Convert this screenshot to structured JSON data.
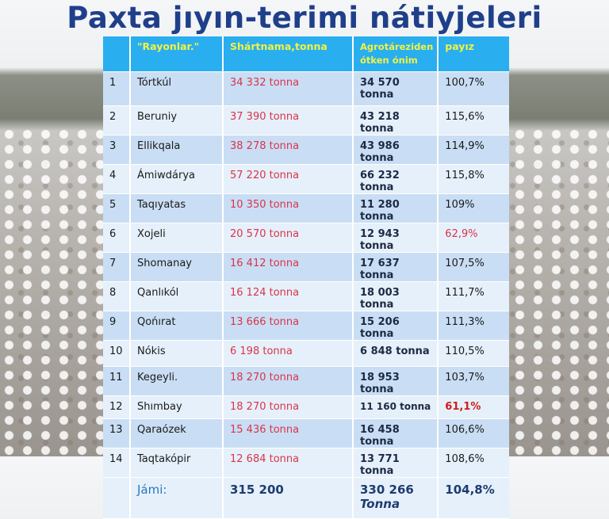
{
  "title": "Paxta jıyın-terimi nátiyjeleri",
  "table": {
    "headers": [
      "",
      "\"Rayonlar.\"",
      "Shártnama,tonna",
      "Agrotáreziden ótken ónim",
      "payız"
    ],
    "rows": [
      {
        "n": "1",
        "rayon": "Tórtkúl",
        "contract": "34 332 tonna",
        "passed": "34 570 tonna",
        "percent": "100,7%"
      },
      {
        "n": "2",
        "rayon": "Beruniy",
        "contract": "37 390 tonna",
        "passed": "43 218 tonna",
        "percent": "115,6%"
      },
      {
        "n": "3",
        "rayon": "Ellikqala",
        "contract": "38 278 tonna",
        "passed": "43 986 tonna",
        "percent": "114,9%"
      },
      {
        "n": "4",
        "rayon": "Ámiwdárya",
        "contract": "57 220 tonna",
        "passed": "66 232 tonna",
        "percent": "115,8%"
      },
      {
        "n": "5",
        "rayon": "Taqıyatas",
        "contract": "10 350 tonna",
        "passed": "11 280 tonna",
        "percent": "109%"
      },
      {
        "n": "6",
        "rayon": "Xojeli",
        "contract": "20 570 tonna",
        "passed": "12 943 tonna",
        "percent": "62,9%"
      },
      {
        "n": "7",
        "rayon": "Shomanay",
        "contract": "16 412  tonna",
        "passed": "17 637 tonna",
        "percent": "107,5%"
      },
      {
        "n": "8",
        "rayon": "Qanlıkól",
        "contract": "16 124  tonna",
        "passed": "18 003 tonna",
        "percent": "111,7%"
      },
      {
        "n": "9",
        "rayon": "Qońırat",
        "contract": "13 666  tonna",
        "passed": "15 206 tonna",
        "percent": "111,3%"
      },
      {
        "n": "10",
        "rayon": "Nókis",
        "contract": "6 198  tonna",
        "passed": "6 848 tonna",
        "percent": "110,5%"
      },
      {
        "n": "11",
        "rayon": "Kegeyli.",
        "contract": "18 270 tonna",
        "passed": "18 953 tonna",
        "percent": "103,7%"
      },
      {
        "n": "12",
        "rayon": "Shımbay",
        "contract": "18 270 tonna",
        "passed": "11 160 tonna",
        "percent": "61,1%"
      },
      {
        "n": "13",
        "rayon": "Qaraózek",
        "contract": "15 436 tonna",
        "passed": "16 458 tonna",
        "percent": "106,6%"
      },
      {
        "n": "14",
        "rayon": "Taqtakópir",
        "contract": "12 684 tonna",
        "passed": "13 771 tonna",
        "percent": "108,6%"
      }
    ],
    "total": {
      "label": "Jámi:",
      "contract": "315 200",
      "passed": "330 266",
      "passed_unit": "Tonna",
      "percent": "104,8%"
    }
  },
  "colors": {
    "header_bg": "#29aef0",
    "header_text": "#f2f240",
    "title": "#1f3f8a",
    "contract_text": "#d9344a",
    "low_percent": "#d01c1c"
  }
}
